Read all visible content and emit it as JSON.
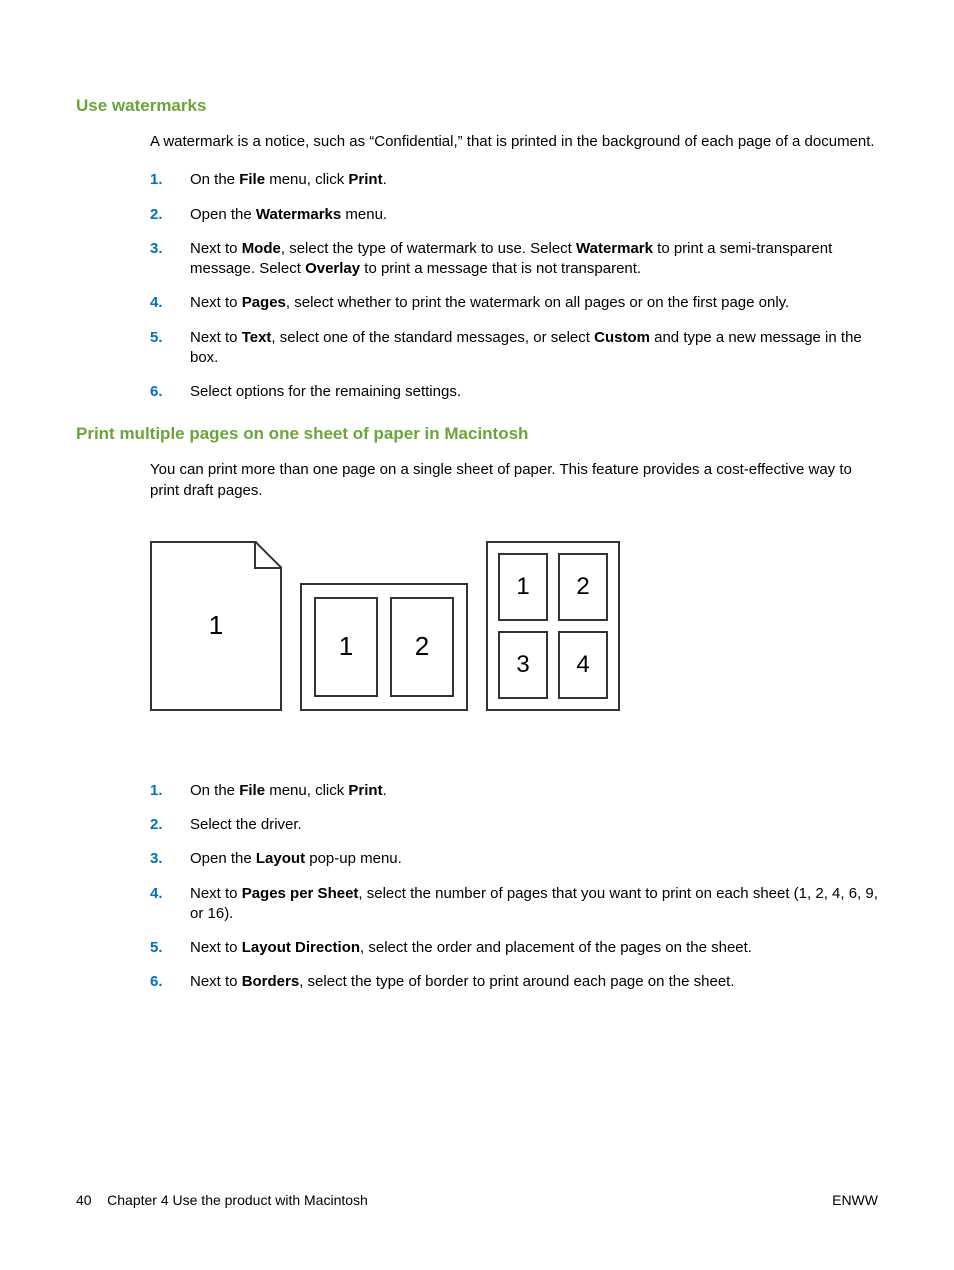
{
  "colors": {
    "heading": "#6BA53A",
    "list_number": "#0070C0",
    "text": "#000000",
    "border": "#333333",
    "background": "#ffffff"
  },
  "typography": {
    "heading_fontsize": 17,
    "body_fontsize": 15,
    "diagram_cell_fontsize": 26
  },
  "section1": {
    "heading": "Use watermarks",
    "intro": "A watermark is a notice, such as “Confidential,” that is printed in the background of each page of a document.",
    "steps": [
      {
        "n": "1.",
        "parts": [
          "On the ",
          {
            "b": "File"
          },
          " menu, click ",
          {
            "b": "Print"
          },
          "."
        ]
      },
      {
        "n": "2.",
        "parts": [
          "Open the ",
          {
            "b": "Watermarks"
          },
          " menu."
        ]
      },
      {
        "n": "3.",
        "parts": [
          "Next to ",
          {
            "b": "Mode"
          },
          ", select the type of watermark to use. Select ",
          {
            "b": "Watermark"
          },
          " to print a semi-transparent message. Select ",
          {
            "b": "Overlay"
          },
          " to print a message that is not transparent."
        ]
      },
      {
        "n": "4.",
        "parts": [
          "Next to ",
          {
            "b": "Pages"
          },
          ", select whether to print the watermark on all pages or on the first page only."
        ]
      },
      {
        "n": "5.",
        "parts": [
          "Next to ",
          {
            "b": "Text"
          },
          ", select one of the standard messages, or select ",
          {
            "b": "Custom"
          },
          " and type a new message in the box."
        ]
      },
      {
        "n": "6.",
        "parts": [
          "Select options for the remaining settings."
        ]
      }
    ]
  },
  "section2": {
    "heading": "Print multiple pages on one sheet of paper in Macintosh",
    "intro": "You can print more than one page on a single sheet of paper. This feature provides a cost-effective way to print draft pages.",
    "steps": [
      {
        "n": "1.",
        "parts": [
          "On the ",
          {
            "b": "File"
          },
          " menu, click ",
          {
            "b": "Print"
          },
          "."
        ]
      },
      {
        "n": "2.",
        "parts": [
          "Select the driver."
        ]
      },
      {
        "n": "3.",
        "parts": [
          "Open the ",
          {
            "b": "Layout"
          },
          " pop-up menu."
        ]
      },
      {
        "n": "4.",
        "parts": [
          "Next to ",
          {
            "b": "Pages per Sheet"
          },
          ", select the number of pages that you want to print on each sheet (1, 2, 4, 6, 9, or 16)."
        ]
      },
      {
        "n": "5.",
        "parts": [
          "Next to ",
          {
            "b": "Layout Direction"
          },
          ", select the order and placement of the pages on the sheet."
        ]
      },
      {
        "n": "6.",
        "parts": [
          "Next to ",
          {
            "b": "Borders"
          },
          ", select the type of border to print around each page on the sheet."
        ]
      }
    ]
  },
  "diagram": {
    "single": {
      "label": "1"
    },
    "two_up": {
      "labels": [
        "1",
        "2"
      ]
    },
    "four_up": {
      "labels": [
        "1",
        "2",
        "3",
        "4"
      ]
    }
  },
  "footer": {
    "page_number": "40",
    "chapter": "Chapter 4   Use the product with Macintosh",
    "right": "ENWW"
  }
}
